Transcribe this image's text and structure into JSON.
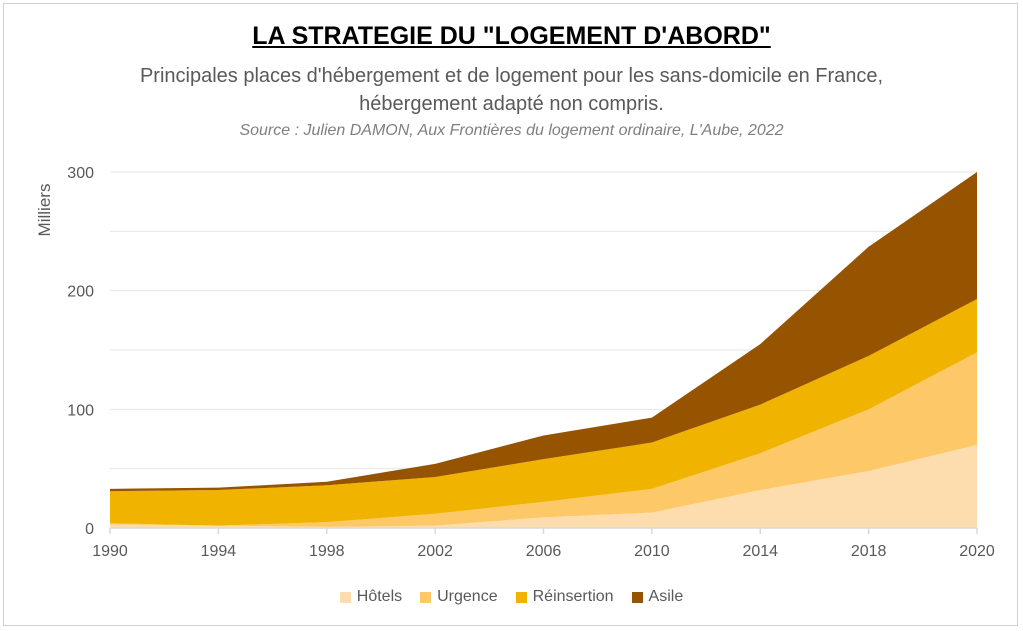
{
  "chart_data": {
    "type": "area",
    "stacked": true,
    "title": "LA STRATEGIE DU \"LOGEMENT D'ABORD\"",
    "subtitle": "Principales places d'hébergement et de logement pour les sans-domicile en France, hébergement adapté non compris.",
    "source": "Source : Julien DAMON, Aux Frontières du logement ordinaire, L'Aube, 2022",
    "xlabel": "",
    "ylabel": "Milliers",
    "ylim": [
      0,
      300
    ],
    "yticks": [
      0,
      100,
      200,
      300
    ],
    "grid": true,
    "legend_position": "bottom",
    "categories": [
      "1990",
      "1994",
      "1998",
      "2002",
      "2006",
      "2010",
      "2014",
      "2018",
      "2020"
    ],
    "series": [
      {
        "name": "Hôtels",
        "color": "#FDDCAE",
        "values": [
          3,
          2,
          1,
          2,
          9,
          13,
          32,
          48,
          70
        ]
      },
      {
        "name": "Urgence",
        "color": "#FDC868",
        "values": [
          1,
          0,
          4,
          10,
          13,
          20,
          31,
          52,
          78
        ]
      },
      {
        "name": "Réinsertion",
        "color": "#EFB300",
        "values": [
          27,
          30,
          31,
          31,
          36,
          39,
          41,
          45,
          45
        ]
      },
      {
        "name": "Asile",
        "color": "#975400",
        "values": [
          2,
          2,
          3,
          11,
          20,
          21,
          51,
          92,
          107
        ]
      }
    ]
  }
}
